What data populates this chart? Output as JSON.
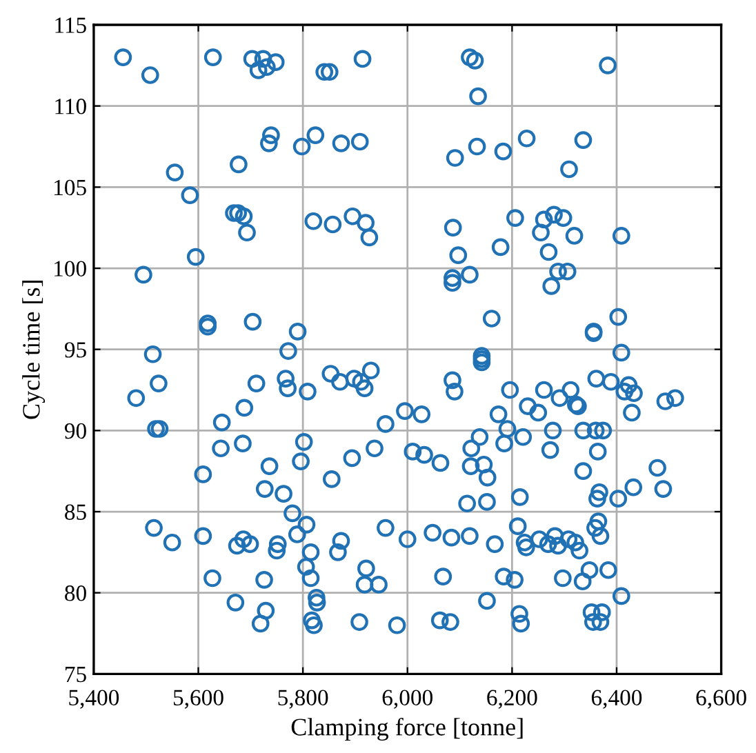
{
  "chart_data": {
    "type": "scatter",
    "xlabel": "Clamping force [tonne]",
    "ylabel": "Cycle time [s]",
    "xlim": [
      5400,
      6600
    ],
    "ylim": [
      75,
      115
    ],
    "xticks": [
      {
        "value": 5400,
        "label": "5,400"
      },
      {
        "value": 5600,
        "label": "5,600"
      },
      {
        "value": 5800,
        "label": "5,800"
      },
      {
        "value": 6000,
        "label": "6,000"
      },
      {
        "value": 6200,
        "label": "6,200"
      },
      {
        "value": 6400,
        "label": "6,400"
      },
      {
        "value": 6600,
        "label": "6,600"
      }
    ],
    "yticks": [
      75,
      80,
      85,
      90,
      95,
      100,
      105,
      110,
      115
    ],
    "grid": true,
    "marker": "circle",
    "series": [
      {
        "color": "#2171b5",
        "x": [
          5456,
          5508,
          5628,
          5703,
          5724,
          5715,
          5731,
          5748,
          5739,
          5735,
          5555,
          5677,
          5584,
          5668,
          5676,
          5687,
          5693,
          5595,
          5495,
          5618,
          5618,
          5704,
          5841,
          5851,
          5914,
          6119,
          6129,
          6135,
          5798,
          5824,
          5873,
          5909,
          6091,
          6133,
          6183,
          5820,
          5857,
          5895,
          5920,
          5927,
          6087,
          6097,
          6178,
          6086,
          6086,
          6119,
          6161,
          5790,
          6383,
          6228,
          6336,
          6309,
          6206,
          6261,
          6280,
          6298,
          6255,
          6319,
          6409,
          6270,
          6288,
          6306,
          6275,
          6403,
          6356,
          6356,
          5513,
          5524,
          5481,
          5519,
          5526,
          5711,
          5688,
          5645,
          5643,
          5685,
          5609,
          5736,
          5727,
          5763,
          5515,
          5550,
          5609,
          5674,
          5686,
          5699,
          5752,
          5750,
          5627,
          5726,
          5671,
          5729,
          5719,
          5772,
          5767,
          5771,
          5809,
          5853,
          5871,
          5898,
          5911,
          5918,
          5930,
          5995,
          6027,
          5958,
          5802,
          5796,
          5894,
          5937,
          5855,
          6010,
          6032,
          6063,
          5780,
          5807,
          5789,
          5815,
          5806,
          5815,
          5873,
          5867,
          5958,
          6000,
          6048,
          6084,
          6119,
          6167,
          5921,
          5918,
          5945,
          6068,
          5826,
          5827,
          5817,
          5821,
          5908,
          5980,
          6062,
          6082,
          6152,
          6174,
          6142,
          6142,
          6142,
          6086,
          6090,
          6138,
          6122,
          6121,
          6146,
          6153,
          6114,
          6152,
          6409,
          6361,
          6389,
          6423,
          6415,
          6433,
          6429,
          6493,
          6512,
          6196,
          6261,
          6291,
          6312,
          6322,
          6326,
          6230,
          6250,
          6191,
          6221,
          6185,
          6278,
          6336,
          6360,
          6374,
          6273,
          6364,
          6336,
          6478,
          6489,
          6432,
          6403,
          6367,
          6363,
          6215,
          6211,
          6365,
          6359,
          6369,
          6224,
          6227,
          6252,
          6269,
          6282,
          6288,
          6308,
          6321,
          6329,
          6184,
          6205,
          6297,
          6335,
          6348,
          6384,
          6409,
          6214,
          6217,
          6352,
          6372,
          6355,
          6369
        ],
        "values": [
          113.0,
          111.9,
          113.0,
          112.9,
          112.9,
          112.2,
          112.4,
          112.7,
          108.2,
          107.7,
          105.9,
          106.4,
          104.5,
          103.4,
          103.4,
          103.2,
          102.2,
          100.7,
          99.6,
          96.6,
          96.4,
          96.7,
          112.1,
          112.1,
          112.9,
          113.0,
          112.8,
          110.6,
          107.5,
          108.2,
          107.7,
          107.8,
          106.8,
          107.5,
          107.2,
          102.9,
          102.7,
          103.2,
          102.8,
          101.9,
          102.5,
          100.8,
          101.3,
          99.4,
          99.1,
          99.6,
          96.9,
          96.1,
          112.5,
          108.0,
          107.9,
          106.1,
          103.1,
          103.0,
          103.3,
          103.1,
          102.2,
          102.0,
          102.0,
          101.0,
          99.8,
          99.8,
          98.9,
          97.0,
          96.1,
          96.0,
          94.7,
          92.9,
          92.0,
          90.1,
          90.1,
          92.9,
          91.4,
          90.5,
          88.9,
          89.2,
          87.3,
          87.8,
          86.4,
          86.1,
          84.0,
          83.1,
          83.5,
          82.9,
          83.3,
          83.0,
          83.0,
          82.6,
          80.9,
          80.8,
          79.4,
          78.9,
          78.1,
          94.9,
          93.2,
          92.6,
          92.4,
          93.5,
          93.0,
          93.2,
          93.0,
          92.6,
          93.7,
          91.2,
          91.0,
          90.4,
          89.3,
          88.1,
          88.3,
          88.9,
          87.0,
          88.7,
          88.5,
          88.0,
          84.9,
          84.2,
          83.6,
          82.5,
          81.6,
          80.9,
          83.2,
          82.5,
          84.0,
          83.3,
          83.7,
          83.4,
          83.5,
          83.0,
          81.5,
          80.5,
          80.5,
          81.0,
          79.7,
          79.4,
          78.3,
          78.0,
          78.2,
          78.0,
          78.3,
          78.2,
          79.5,
          91.0,
          94.6,
          94.4,
          94.2,
          93.1,
          92.4,
          89.6,
          88.9,
          87.8,
          87.9,
          87.1,
          85.5,
          85.6,
          94.8,
          93.2,
          93.0,
          92.8,
          92.4,
          92.3,
          91.1,
          91.8,
          92.0,
          92.5,
          92.5,
          92.0,
          92.5,
          91.6,
          91.5,
          91.5,
          91.1,
          90.1,
          89.6,
          89.2,
          90.0,
          90.0,
          90.0,
          90.0,
          88.8,
          88.7,
          87.5,
          87.7,
          86.4,
          86.5,
          85.8,
          86.2,
          85.8,
          85.9,
          84.1,
          84.4,
          84.0,
          83.5,
          83.1,
          82.8,
          83.3,
          83.0,
          83.5,
          82.9,
          83.3,
          83.1,
          82.6,
          81.0,
          80.8,
          80.9,
          80.7,
          81.4,
          81.4,
          79.8,
          78.7,
          78.1,
          78.8,
          78.8,
          78.2,
          78.2
        ]
      }
    ]
  }
}
